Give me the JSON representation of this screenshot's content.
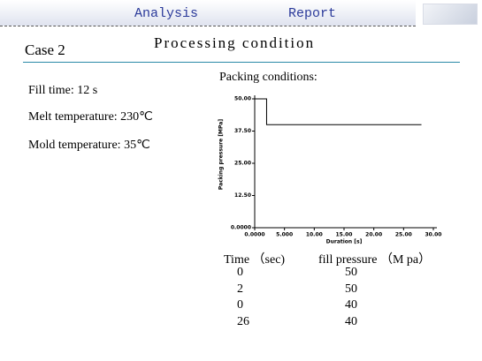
{
  "header": {
    "tabs": [
      "Analysis",
      "Report"
    ]
  },
  "title": "Processing condition",
  "case": "Case 2",
  "fields": [
    "Fill time: 12 s",
    "Melt temperature:  230℃",
    "Mold temperature: 35℃"
  ],
  "chart_heading": "Packing conditions:",
  "chart_data": {
    "type": "line",
    "y_label": "Packing pressure [MPa]",
    "x_label": "Duration [s]",
    "series": [
      {
        "color": "#000000",
        "x": [
          0,
          2,
          2,
          28
        ],
        "values": [
          50,
          50,
          40,
          40
        ]
      }
    ],
    "xlim": [
      0,
      30
    ],
    "ylim": [
      0,
      50
    ],
    "xticks": [
      {
        "value": 0,
        "label": "0.0000"
      },
      {
        "value": 5,
        "label": "5.000"
      },
      {
        "value": 10,
        "label": "10.00"
      },
      {
        "value": 15,
        "label": "15.00"
      },
      {
        "value": 20,
        "label": "20.00"
      },
      {
        "value": 25,
        "label": "25.00"
      },
      {
        "value": 30,
        "label": "30.00"
      }
    ],
    "yticks": [
      {
        "value": 0,
        "label": "0.0000"
      },
      {
        "value": 12.5,
        "label": "12.50"
      },
      {
        "value": 25,
        "label": "25.00"
      },
      {
        "value": 37.5,
        "label": "37.50"
      },
      {
        "value": 50,
        "label": "50.00"
      }
    ]
  },
  "table": {
    "header": [
      "Time （sec)",
      "fill pressure （M pa）"
    ],
    "rows": [
      [
        "0",
        "50"
      ],
      [
        "2",
        "50"
      ],
      [
        "0",
        "40"
      ],
      [
        "26",
        "40"
      ]
    ]
  }
}
